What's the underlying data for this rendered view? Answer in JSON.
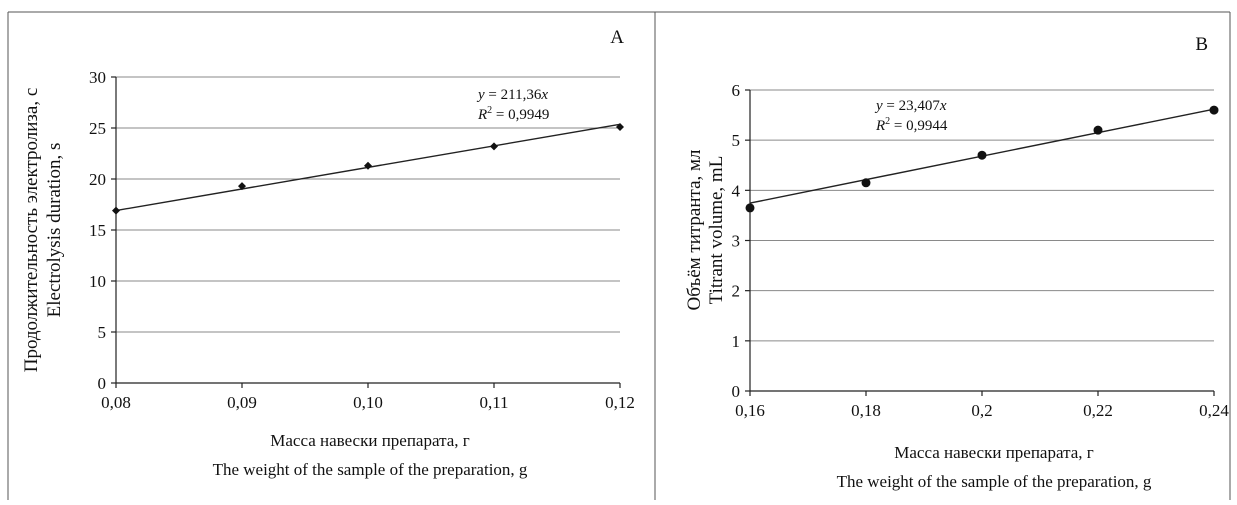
{
  "chart_data": [
    {
      "type": "scatter",
      "panel_label": "A",
      "x": [
        0.08,
        0.09,
        0.1,
        0.11,
        0.12
      ],
      "y": [
        16.9,
        19.3,
        21.3,
        23.2,
        25.1
      ],
      "marker": "diamond",
      "x_ticks": [
        "0,08",
        "0,09",
        "0,10",
        "0,11",
        "0,12"
      ],
      "x_tick_values": [
        0.08,
        0.09,
        0.1,
        0.11,
        0.12
      ],
      "y_ticks": [
        "0",
        "5",
        "10",
        "15",
        "20",
        "25",
        "30"
      ],
      "y_tick_values": [
        0,
        5,
        10,
        15,
        20,
        25,
        30
      ],
      "xlim": [
        0.08,
        0.12
      ],
      "ylim": [
        0,
        30
      ],
      "xlabel_line1": "Масса навески препарата, г",
      "xlabel_line2": "The weight of the sample of the preparation, g",
      "ylabel_line1": "Продолжительность электролиза, с",
      "ylabel_line2": "Electrolysis duration, s",
      "trendline": {
        "slope": 211.36,
        "equation_prefix": "y",
        "equation_value": " = 211,36",
        "equation_var": "x",
        "r2_prefix": "R",
        "r2_sup": "2",
        "r2_value": " = 0,9949"
      },
      "grid": true,
      "legend": "none"
    },
    {
      "type": "scatter",
      "panel_label": "B",
      "x": [
        0.16,
        0.18,
        0.2,
        0.22,
        0.24
      ],
      "y": [
        3.65,
        4.15,
        4.7,
        5.2,
        5.6
      ],
      "marker": "circle",
      "x_ticks": [
        "0,16",
        "0,18",
        "0,2",
        "0,22",
        "0,24"
      ],
      "x_tick_values": [
        0.16,
        0.18,
        0.2,
        0.22,
        0.24
      ],
      "y_ticks": [
        "0",
        "1",
        "2",
        "3",
        "4",
        "5",
        "6"
      ],
      "y_tick_values": [
        0,
        1,
        2,
        3,
        4,
        5,
        6
      ],
      "xlim": [
        0.16,
        0.24
      ],
      "ylim": [
        0,
        6
      ],
      "xlabel_line1": "Масса навески препарата, г",
      "xlabel_line2": "The weight of the sample of the preparation, g",
      "ylabel_line1": "Объём титранта, мл",
      "ylabel_line2": "Titrant volume, mL",
      "trendline": {
        "slope": 23.407,
        "equation_prefix": "y",
        "equation_value": " = 23,407",
        "equation_var": "x",
        "r2_prefix": "R",
        "r2_sup": "2",
        "r2_value": " = 0,9944"
      },
      "grid": true,
      "legend": "none"
    }
  ]
}
